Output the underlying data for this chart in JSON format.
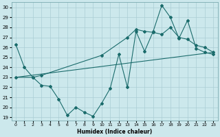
{
  "xlabel": "Humidex (Indice chaleur)",
  "xlim_min": -0.5,
  "xlim_max": 23.5,
  "ylim_min": 18.7,
  "ylim_max": 30.5,
  "xticks": [
    0,
    1,
    2,
    3,
    4,
    5,
    6,
    7,
    8,
    9,
    10,
    11,
    12,
    13,
    14,
    15,
    16,
    17,
    18,
    19,
    20,
    21,
    22,
    23
  ],
  "yticks": [
    19,
    20,
    21,
    22,
    23,
    24,
    25,
    26,
    27,
    28,
    29,
    30
  ],
  "bg_color": "#cce8ec",
  "grid_color": "#aacdd4",
  "line_color": "#1a6b6b",
  "line1_x": [
    0,
    1,
    2,
    3,
    4,
    5,
    6,
    7,
    8,
    9,
    10,
    11,
    12,
    13,
    14,
    15,
    16,
    17,
    18,
    19,
    20,
    21,
    22,
    23
  ],
  "line1_y": [
    26.3,
    24.0,
    23.0,
    22.2,
    22.1,
    20.8,
    19.2,
    20.0,
    19.5,
    19.1,
    20.4,
    21.9,
    25.3,
    22.0,
    27.6,
    25.6,
    27.6,
    30.2,
    29.0,
    26.9,
    28.7,
    25.9,
    25.5,
    25.3
  ],
  "line2_x": [
    0,
    2,
    3,
    10,
    13,
    14,
    15,
    16,
    17,
    18,
    19,
    20,
    21,
    22,
    23
  ],
  "line2_y": [
    23.0,
    23.0,
    23.2,
    25.2,
    27.0,
    27.8,
    27.6,
    27.5,
    27.3,
    28.0,
    27.0,
    26.8,
    26.2,
    26.0,
    25.5
  ],
  "line3_x": [
    0,
    23
  ],
  "line3_y": [
    23.0,
    25.5
  ]
}
